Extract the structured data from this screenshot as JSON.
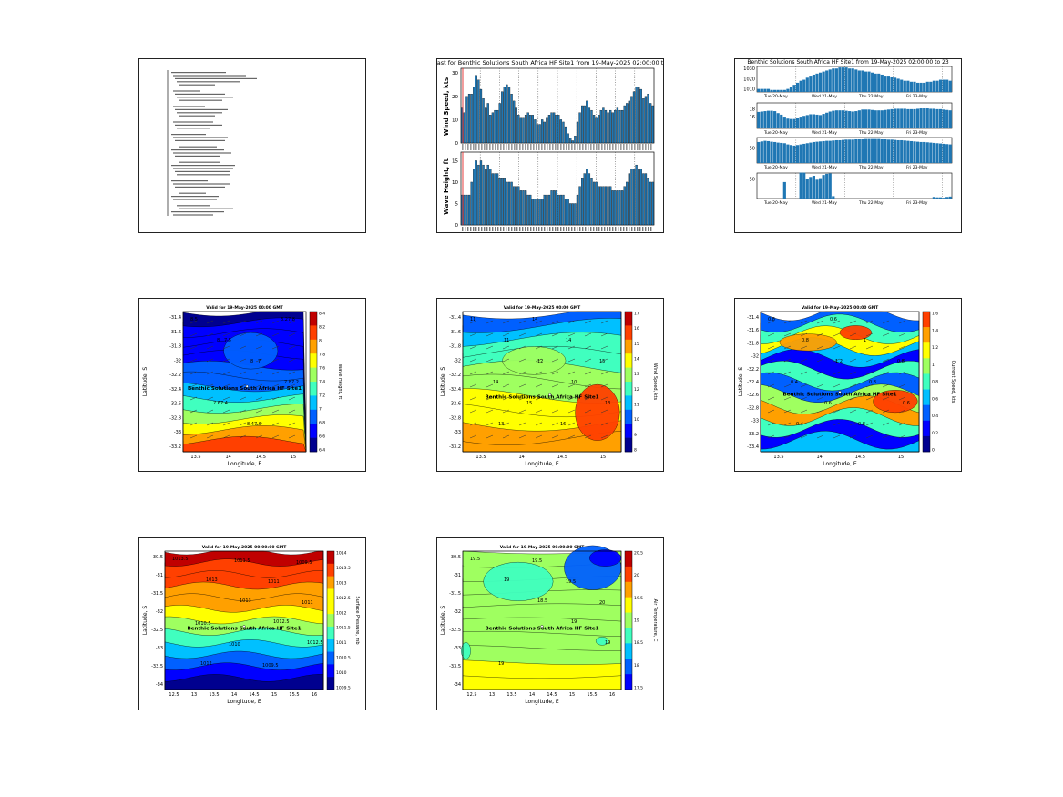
{
  "page": {
    "background": "#ffffff"
  },
  "colors": {
    "bar": "#1f77b4",
    "bar_edge": "#000000",
    "marker": "#e32626",
    "jet": [
      "#00008f",
      "#0000ff",
      "#0060ff",
      "#00c0ff",
      "#40ffbf",
      "#9fff60",
      "#ffff00",
      "#ffa000",
      "#ff4000",
      "#c00000"
    ]
  },
  "panels": {
    "text_report": {
      "type": "text-report",
      "lines_visible": "illegible at this size"
    },
    "wind_wave": {
      "title": "ast for Benthic Solutions South Africa HF Site1 from 19-May-2025 02:00:00 t",
      "wind": {
        "ylabel": "Wind Speed, kts",
        "yticks": [
          "0",
          "10",
          "20",
          "30"
        ],
        "ylim": [
          0,
          32
        ],
        "values": [
          15,
          13,
          20,
          21,
          21,
          24,
          29,
          27,
          23,
          19,
          15,
          17,
          12,
          13,
          14,
          14,
          17,
          22,
          24,
          25,
          24,
          21,
          18,
          15,
          12,
          11,
          11,
          12,
          13,
          12,
          12,
          10,
          8,
          8,
          10,
          9,
          11,
          12,
          13,
          13,
          12,
          12,
          10,
          9,
          7,
          4,
          2,
          1,
          3,
          9,
          13,
          16,
          16,
          18,
          15,
          14,
          12,
          11,
          12,
          14,
          15,
          14,
          13,
          14,
          13,
          14,
          15,
          14,
          14,
          16,
          17,
          18,
          20,
          22,
          24,
          24,
          23,
          19,
          20,
          21,
          17,
          16
        ]
      },
      "wave": {
        "ylabel": "Wave Height, ft",
        "yticks": [
          "0",
          "5",
          "10",
          "15"
        ],
        "ylim": [
          0,
          17
        ],
        "values": [
          7,
          7,
          7,
          7,
          10,
          13,
          15,
          14,
          15,
          14,
          13,
          14,
          13,
          12,
          12,
          12,
          11,
          11,
          11,
          10,
          10,
          10,
          9,
          9,
          9,
          8,
          8,
          8,
          7,
          7,
          6,
          6,
          6,
          6,
          6,
          7,
          7,
          7,
          8,
          8,
          8,
          7,
          7,
          7,
          6,
          6,
          5,
          5,
          5,
          7,
          9,
          11,
          12,
          13,
          12,
          11,
          10,
          10,
          9,
          9,
          9,
          9,
          9,
          9,
          8,
          8,
          8,
          8,
          8,
          9,
          10,
          12,
          13,
          13,
          14,
          13,
          13,
          12,
          12,
          11,
          10,
          10
        ]
      }
    },
    "met_series": {
      "title": "Benthic Solutions South Africa HF Site1 from 19-May-2025 02:00:00 to 23",
      "rows": [
        {
          "name": "pressure",
          "yticks": [
            "1030",
            "1020",
            "1010"
          ],
          "ylim": [
            1007,
            1032
          ],
          "label_text": "",
          "date_labels": [
            "Tue 20-May",
            "Wed 21-May",
            "Thu 22-May",
            "Fri 23-May"
          ],
          "values": [
            1010,
            1010,
            1010,
            1010,
            1009,
            1009,
            1009,
            1009,
            1009,
            1010,
            1012,
            1014,
            1016,
            1018,
            1019,
            1021,
            1023,
            1024,
            1025,
            1026,
            1027,
            1028,
            1029,
            1030,
            1030,
            1031,
            1031,
            1031,
            1030,
            1030,
            1029,
            1028,
            1028,
            1027,
            1027,
            1026,
            1025,
            1025,
            1024,
            1023,
            1023,
            1022,
            1021,
            1020,
            1019,
            1018,
            1018,
            1017,
            1017,
            1016,
            1016,
            1016,
            1017,
            1017,
            1018,
            1018,
            1019,
            1019,
            1019,
            1018
          ]
        },
        {
          "name": "temperature",
          "yticks": [
            "18",
            "16"
          ],
          "ylim": [
            13,
            19.5
          ],
          "date_labels": [
            "Tue 20-May",
            "Wed 21-May",
            "Thu 22-May",
            "Fri 23-May"
          ],
          "values": [
            17.2,
            17.3,
            17.4,
            17.5,
            17.5,
            17.4,
            16.9,
            16.5,
            16.0,
            15.5,
            15.4,
            15.4,
            15.7,
            16.0,
            16.2,
            16.4,
            16.6,
            16.6,
            16.5,
            16.4,
            16.7,
            17.0,
            17.3,
            17.5,
            17.6,
            17.6,
            17.6,
            17.5,
            17.4,
            17.3,
            17.4,
            17.6,
            17.8,
            17.8,
            17.8,
            17.7,
            17.6,
            17.6,
            17.6,
            17.7,
            17.8,
            17.9,
            18.0,
            18.0,
            18.0,
            18.0,
            17.9,
            17.9,
            17.9,
            18.0,
            18.1,
            18.1,
            18.1,
            18.0,
            18.0,
            17.9,
            17.9,
            17.8,
            17.7,
            17.6
          ]
        },
        {
          "name": "humidity",
          "yticks": [
            "50"
          ],
          "ylim": [
            0,
            85
          ],
          "date_labels": [
            "Tue 20-May",
            "Wed 21-May",
            "Thu 22-May",
            "Fri 23-May"
          ],
          "values": [
            70,
            72,
            74,
            73,
            71,
            70,
            68,
            67,
            66,
            62,
            60,
            58,
            60,
            62,
            64,
            66,
            68,
            70,
            71,
            72,
            73,
            74,
            74,
            75,
            76,
            76,
            77,
            78,
            78,
            78,
            79,
            79,
            79,
            80,
            80,
            80,
            80,
            80,
            79,
            79,
            78,
            78,
            77,
            76,
            76,
            75,
            74,
            73,
            72,
            71,
            70,
            70,
            69,
            68,
            67,
            66,
            65,
            64,
            63,
            62
          ]
        },
        {
          "name": "precipitation",
          "yticks": [
            "50"
          ],
          "ylim": [
            0,
            65
          ],
          "label_text": "",
          "date_labels": [
            "Tue 20-May",
            "Wed 21-May",
            "Thu 22-May",
            "Fri 23-May"
          ],
          "values": [
            0,
            0,
            0,
            0,
            0,
            0,
            0,
            0,
            42,
            0,
            0,
            0,
            0,
            66,
            66,
            50,
            55,
            58,
            48,
            52,
            60,
            63,
            64,
            6,
            0,
            0,
            0,
            0,
            0,
            0,
            0,
            0,
            0,
            0,
            0,
            0,
            0,
            0,
            0,
            0,
            0,
            0,
            0,
            0,
            0,
            0,
            0,
            0,
            0,
            0,
            0,
            0,
            0,
            0,
            4,
            3,
            3,
            2,
            4,
            5
          ]
        }
      ]
    },
    "maps": [
      {
        "id": "wave-height-map",
        "title": "Valid for 19-May-2025 00:00 GMT",
        "xlabel": "Longitude, E",
        "ylabel": "Latitude, S",
        "cbar_label": "Wave Height, ft",
        "xticks": [
          "13.5",
          "14",
          "14.5",
          "15"
        ],
        "yticks": [
          "-31.4",
          "-31.6",
          "-31.8",
          "-32",
          "-32.2",
          "-32.4",
          "-32.6",
          "-32.8",
          "-33",
          "-33.2"
        ],
        "cbar_ticks": [
          "8.4",
          "8.2",
          "8",
          "7.8",
          "7.6",
          "7.4",
          "7.2",
          "7",
          "6.8",
          "6.6",
          "6.4"
        ],
        "site_label": "Benthic Solutions South Africa HF Site1",
        "contour_labels": [
          "8.5",
          "7.5",
          "7",
          "7.2",
          "7.4",
          "7.6",
          "7.8",
          "8",
          "8",
          "7.8",
          "7.6",
          "8.4",
          "8.2"
        ]
      },
      {
        "id": "wind-speed-map",
        "title": "Valid for 19-May-2025 00:00 GMT",
        "xlabel": "Longitude, E",
        "ylabel": "Latitude, S",
        "cbar_label": "Wind Speed, kts",
        "xticks": [
          "13.5",
          "14",
          "14.5",
          "15"
        ],
        "yticks": [
          "-31.4",
          "-31.6",
          "-31.8",
          "-32",
          "-32.2",
          "-32.4",
          "-32.6",
          "-32.8",
          "-33",
          "-33.2"
        ],
        "cbar_ticks": [
          "17",
          "16",
          "15",
          "14",
          "13",
          "12",
          "11",
          "10",
          "9",
          "8"
        ],
        "site_label": "Benthic Solutions South Africa HF Site1",
        "contour_labels": [
          "11",
          "11",
          "12",
          "10",
          "13",
          "13",
          "14",
          "14",
          "15",
          "14",
          "15",
          "16"
        ]
      },
      {
        "id": "current-speed-map",
        "title": "Valid for 19-May-2025 00:00 GMT",
        "xlabel": "Longitude, E",
        "ylabel": "Latitude, S",
        "cbar_label": "Current Speed, kts",
        "xticks": [
          "13.5",
          "14",
          "14.5",
          "15"
        ],
        "yticks": [
          "-31.4",
          "-31.6",
          "-31.8",
          "-32",
          "-32.2",
          "-32.4",
          "-32.6",
          "-32.8",
          "-33",
          "-33.2",
          "-33.4"
        ],
        "cbar_ticks": [
          "1.6",
          "1.4",
          "1.2",
          "1",
          "0.8",
          "0.6",
          "0.4",
          "0.2",
          "0"
        ],
        "site_label": "Benthic Solutions South Africa HF Site1",
        "contour_labels": [
          "0.8",
          "0.8",
          "1.2",
          "0.8",
          "0.6",
          "0.4",
          "0.6",
          "1",
          "0.8",
          "0.4",
          "0.6",
          "0.8"
        ]
      },
      {
        "id": "pressure-map",
        "title": "Valid for 19-May-2025 00:00:00 GMT",
        "xlabel": "Longitude, E",
        "ylabel": "Latitude, S",
        "cbar_label": "Surface Pressure, mb",
        "xticks": [
          "12.5",
          "13",
          "13.5",
          "14",
          "14.5",
          "15",
          "15.5",
          "16"
        ],
        "yticks": [
          "-30.5",
          "-31",
          "-31.5",
          "-32",
          "-32.5",
          "-33",
          "-33.5",
          "-34"
        ],
        "cbar_ticks": [
          "1014",
          "1013.5",
          "1013",
          "1012.5",
          "1012",
          "1011.5",
          "1011",
          "1010.5",
          "1010",
          "1009.5"
        ],
        "site_label": "Benthic Solutions South Africa HF Site1",
        "contour_labels": [
          "1013.5",
          "1013",
          "1013",
          "1012.5",
          "1012.5",
          "1012",
          "1011.5",
          "1011",
          "1011",
          "1010.5",
          "1010",
          "1009.5",
          "1009.5"
        ]
      },
      {
        "id": "air-temp-map",
        "title": "Valid for 19-May-2025 00:00:00 GMT",
        "xlabel": "Longitude, E",
        "ylabel": "Latitude, S",
        "cbar_label": "Air Temperature, C",
        "xticks": [
          "12.5",
          "13",
          "13.5",
          "14",
          "14.5",
          "15",
          "15.5",
          "16"
        ],
        "yticks": [
          "-30.5",
          "-31",
          "-31.5",
          "-32",
          "-32.5",
          "-33",
          "-33.5",
          "-34"
        ],
        "cbar_ticks": [
          "20.5",
          "20",
          "19.5",
          "19",
          "18.5",
          "18",
          "17.5"
        ],
        "site_label": "Benthic Solutions South Africa HF Site1",
        "contour_labels": [
          "19.5",
          "19",
          "18.5",
          "19",
          "19",
          "19",
          "19.5",
          "19.5",
          "20"
        ]
      }
    ]
  },
  "chart_data": [
    {
      "type": "bar",
      "title": "ast for Benthic Solutions South Africa HF Site1 from 19-May-2025 02:00:00 t",
      "ylabel": "Wind Speed, kts",
      "ylim": [
        0,
        32
      ]
    },
    {
      "type": "bar",
      "ylabel": "Wave Height, ft",
      "ylim": [
        0,
        17
      ]
    },
    {
      "type": "bar",
      "title": "Benthic Solutions South Africa HF Site1 from 19-May-2025 02:00:00 to 23"
    },
    {
      "type": "heatmap",
      "title": "Valid for 19-May-2025 00:00 GMT",
      "xlabel": "Longitude, E",
      "ylabel": "Latitude, S"
    },
    {
      "type": "heatmap",
      "title": "Valid for 19-May-2025 00:00 GMT",
      "xlabel": "Longitude, E",
      "ylabel": "Latitude, S"
    },
    {
      "type": "heatmap",
      "title": "Valid for 19-May-2025 00:00 GMT",
      "xlabel": "Longitude, E",
      "ylabel": "Latitude, S"
    },
    {
      "type": "heatmap",
      "title": "Valid for 19-May-2025 00:00:00 GMT",
      "xlabel": "Longitude, E",
      "ylabel": "Latitude, S"
    },
    {
      "type": "heatmap",
      "title": "Valid for 19-May-2025 00:00:00 GMT",
      "xlabel": "Longitude, E",
      "ylabel": "Latitude, S"
    }
  ]
}
